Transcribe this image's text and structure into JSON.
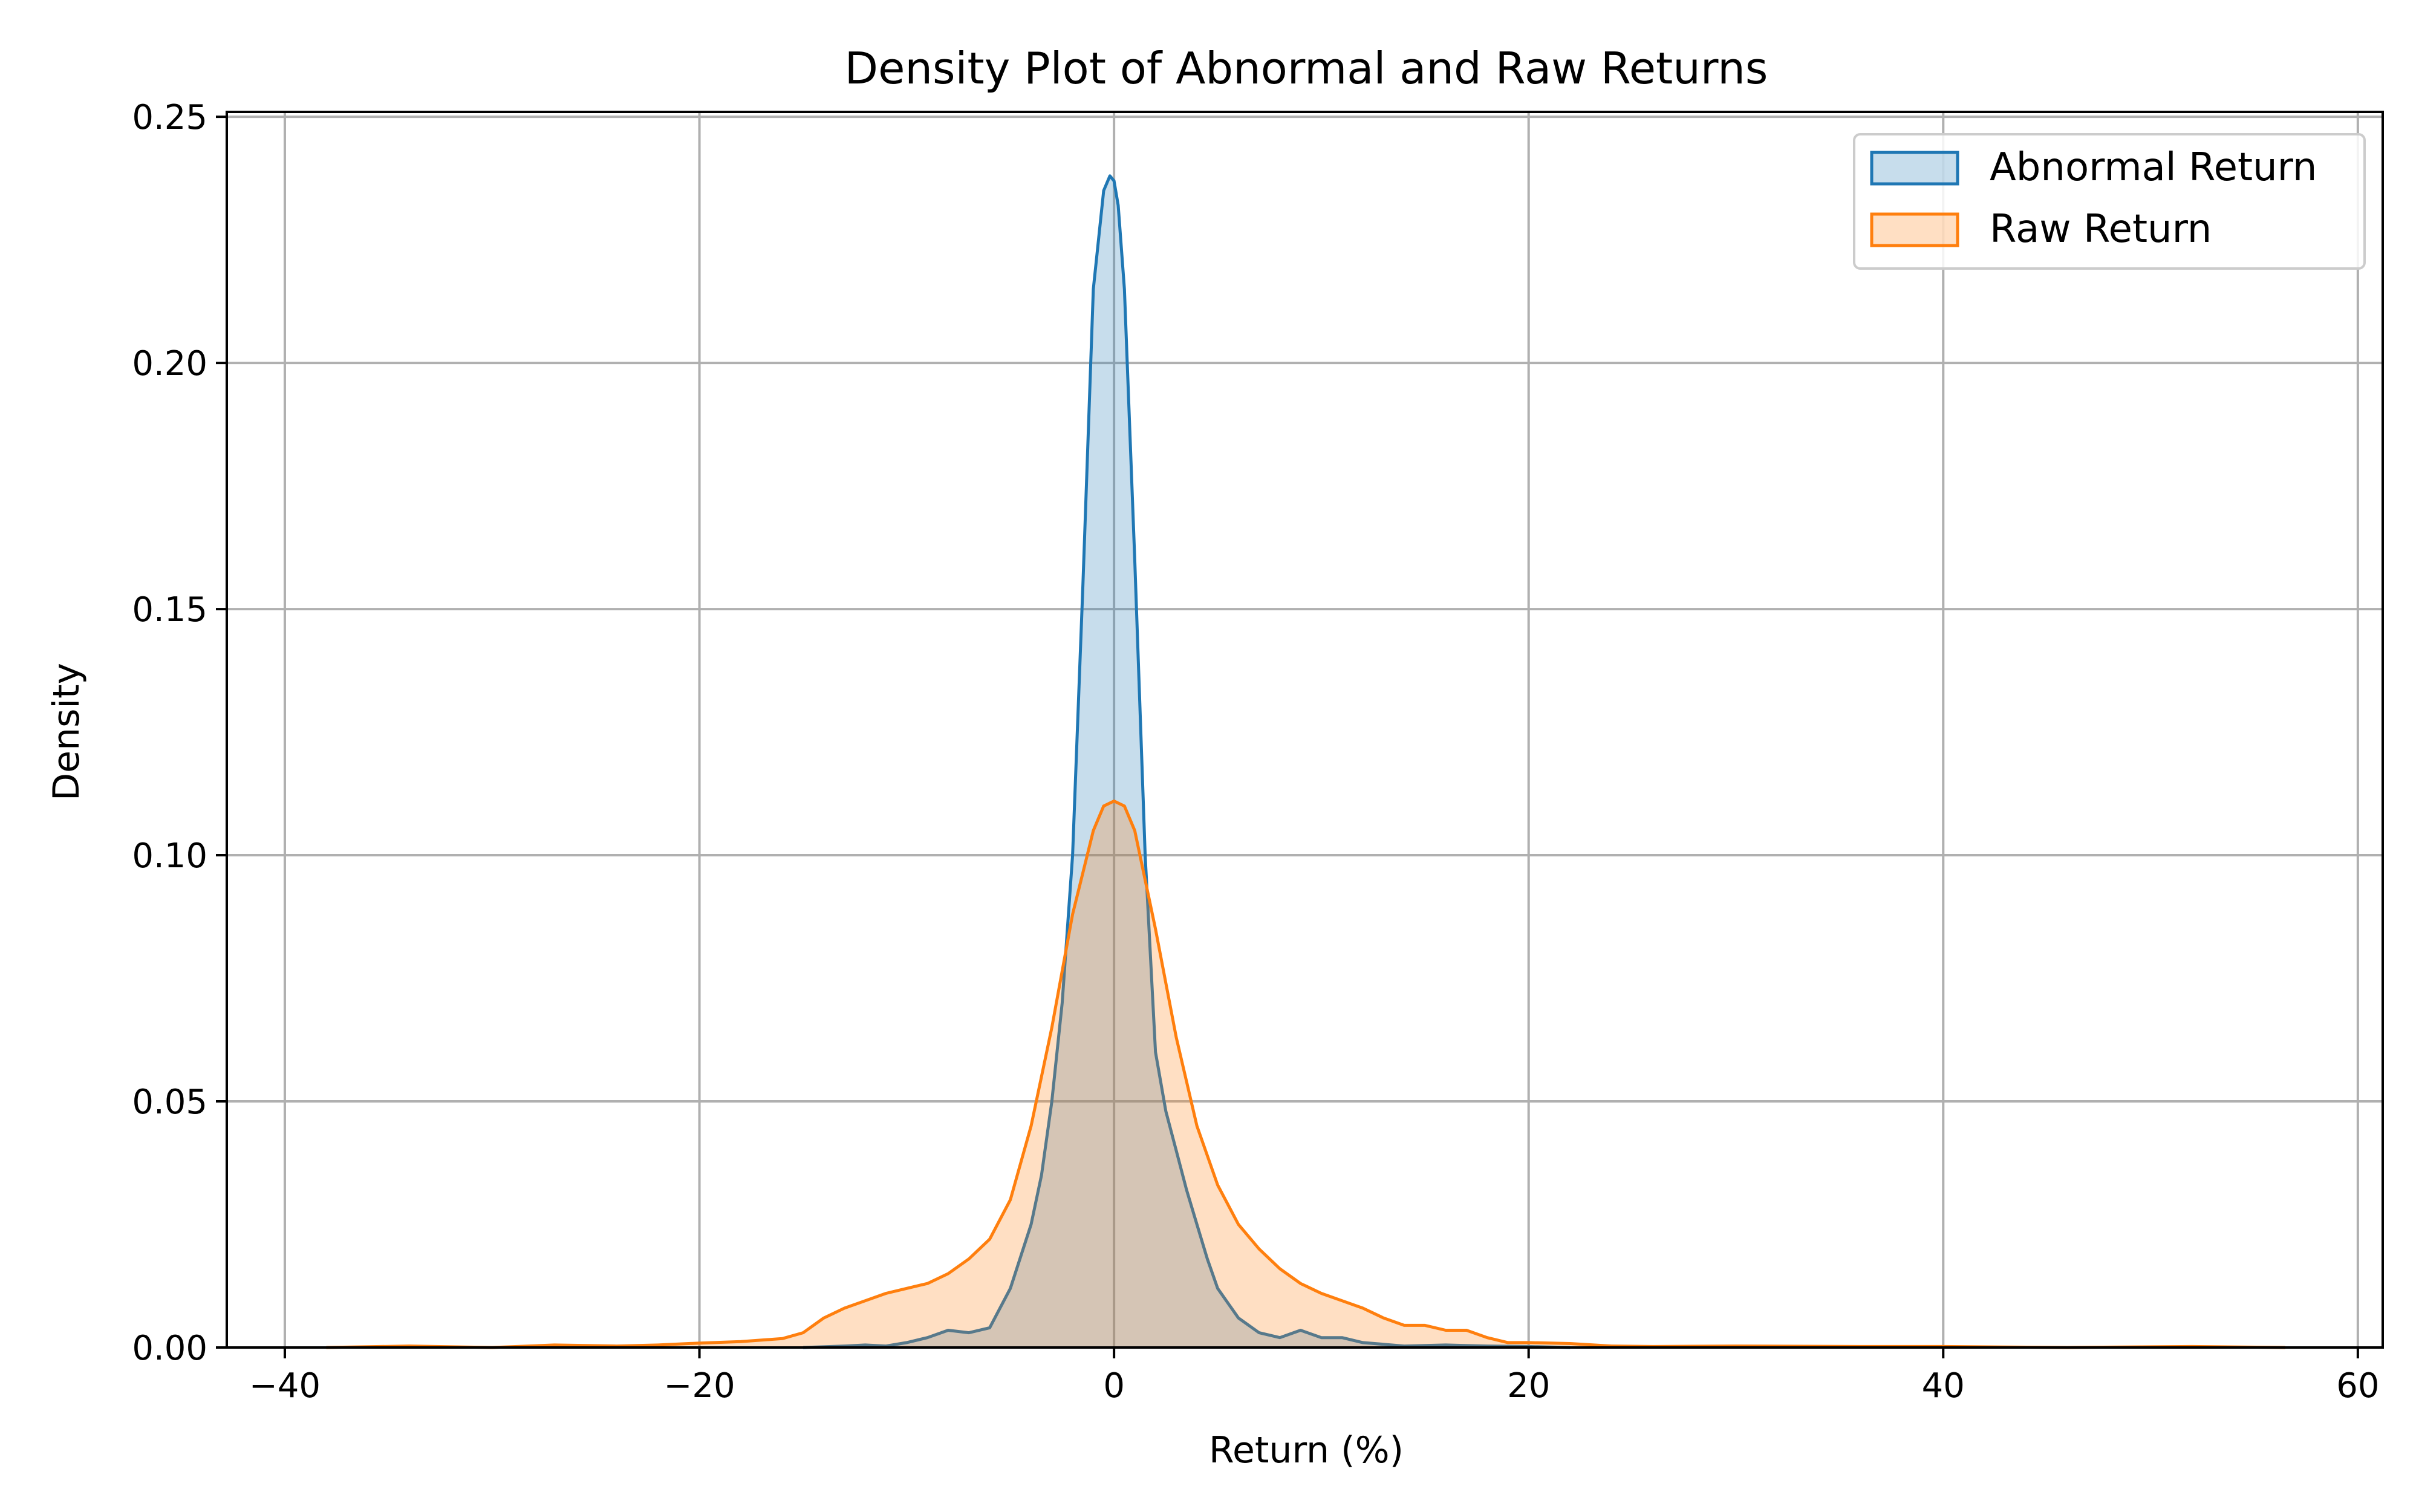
{
  "chart_data": {
    "type": "area",
    "title": "Density Plot of Abnormal and Raw Returns",
    "xlabel": "Return (%)",
    "ylabel": "Density",
    "xlim": [
      -42.8,
      61.2
    ],
    "ylim": [
      0,
      0.251
    ],
    "xticks": [
      -40,
      -20,
      0,
      20,
      40,
      60
    ],
    "xtick_labels": [
      "−40",
      "−20",
      "0",
      "20",
      "40",
      "60"
    ],
    "yticks": [
      0,
      0.05,
      0.1,
      0.15,
      0.2,
      0.25
    ],
    "ytick_labels": [
      "0.00",
      "0.05",
      "0.10",
      "0.15",
      "0.20",
      "0.25"
    ],
    "grid": true,
    "legend_position": "top-right",
    "series": [
      {
        "name": "Abnormal Return",
        "color": "#1f77b4",
        "fill_color": "#1f77b4",
        "fill_opacity": 0.25,
        "x": [
          -15,
          -13,
          -12,
          -11,
          -10,
          -9,
          -8,
          -7,
          -6,
          -5,
          -4,
          -3.5,
          -3,
          -2.5,
          -2,
          -1.5,
          -1,
          -0.5,
          -0.2,
          0,
          0.2,
          0.5,
          1,
          1.5,
          2,
          2.5,
          3,
          3.5,
          4,
          4.5,
          5,
          6,
          7,
          8,
          9,
          10,
          11,
          12,
          14,
          16,
          18,
          20,
          22
        ],
        "y": [
          0.0,
          0.0003,
          0.0005,
          0.0003,
          0.001,
          0.002,
          0.0035,
          0.003,
          0.004,
          0.012,
          0.025,
          0.035,
          0.05,
          0.07,
          0.1,
          0.155,
          0.215,
          0.235,
          0.238,
          0.237,
          0.232,
          0.215,
          0.16,
          0.1,
          0.06,
          0.048,
          0.04,
          0.032,
          0.025,
          0.018,
          0.012,
          0.006,
          0.003,
          0.002,
          0.0035,
          0.002,
          0.002,
          0.001,
          0.0003,
          0.0005,
          0.0003,
          0.0002,
          0.0
        ]
      },
      {
        "name": "Raw Return",
        "color": "#ff7f0e",
        "fill_color": "#ff7f0e",
        "fill_opacity": 0.25,
        "x": [
          -38,
          -34,
          -30,
          -27,
          -24,
          -22,
          -20,
          -18,
          -16,
          -15,
          -14,
          -13,
          -12,
          -11,
          -10,
          -9,
          -8,
          -7,
          -6,
          -5,
          -4,
          -3,
          -2,
          -1,
          -0.5,
          0,
          0.5,
          1,
          2,
          3,
          4,
          5,
          6,
          7,
          8,
          9,
          10,
          11,
          12,
          13,
          14,
          15,
          16,
          17,
          18,
          19,
          20,
          22,
          24,
          26,
          30,
          36,
          40,
          46,
          52,
          56.5
        ],
        "y": [
          0.0,
          0.0003,
          0.0,
          0.0005,
          0.0003,
          0.0005,
          0.0009,
          0.0012,
          0.0018,
          0.003,
          0.006,
          0.008,
          0.0095,
          0.011,
          0.012,
          0.013,
          0.015,
          0.018,
          0.022,
          0.03,
          0.045,
          0.065,
          0.088,
          0.105,
          0.11,
          0.111,
          0.11,
          0.105,
          0.085,
          0.063,
          0.045,
          0.033,
          0.025,
          0.02,
          0.016,
          0.013,
          0.011,
          0.0095,
          0.008,
          0.006,
          0.0045,
          0.0045,
          0.0035,
          0.0035,
          0.002,
          0.001,
          0.001,
          0.0008,
          0.0003,
          0.0002,
          0.0003,
          0.0002,
          0.0002,
          0.0,
          0.0002,
          0.0
        ]
      }
    ]
  }
}
